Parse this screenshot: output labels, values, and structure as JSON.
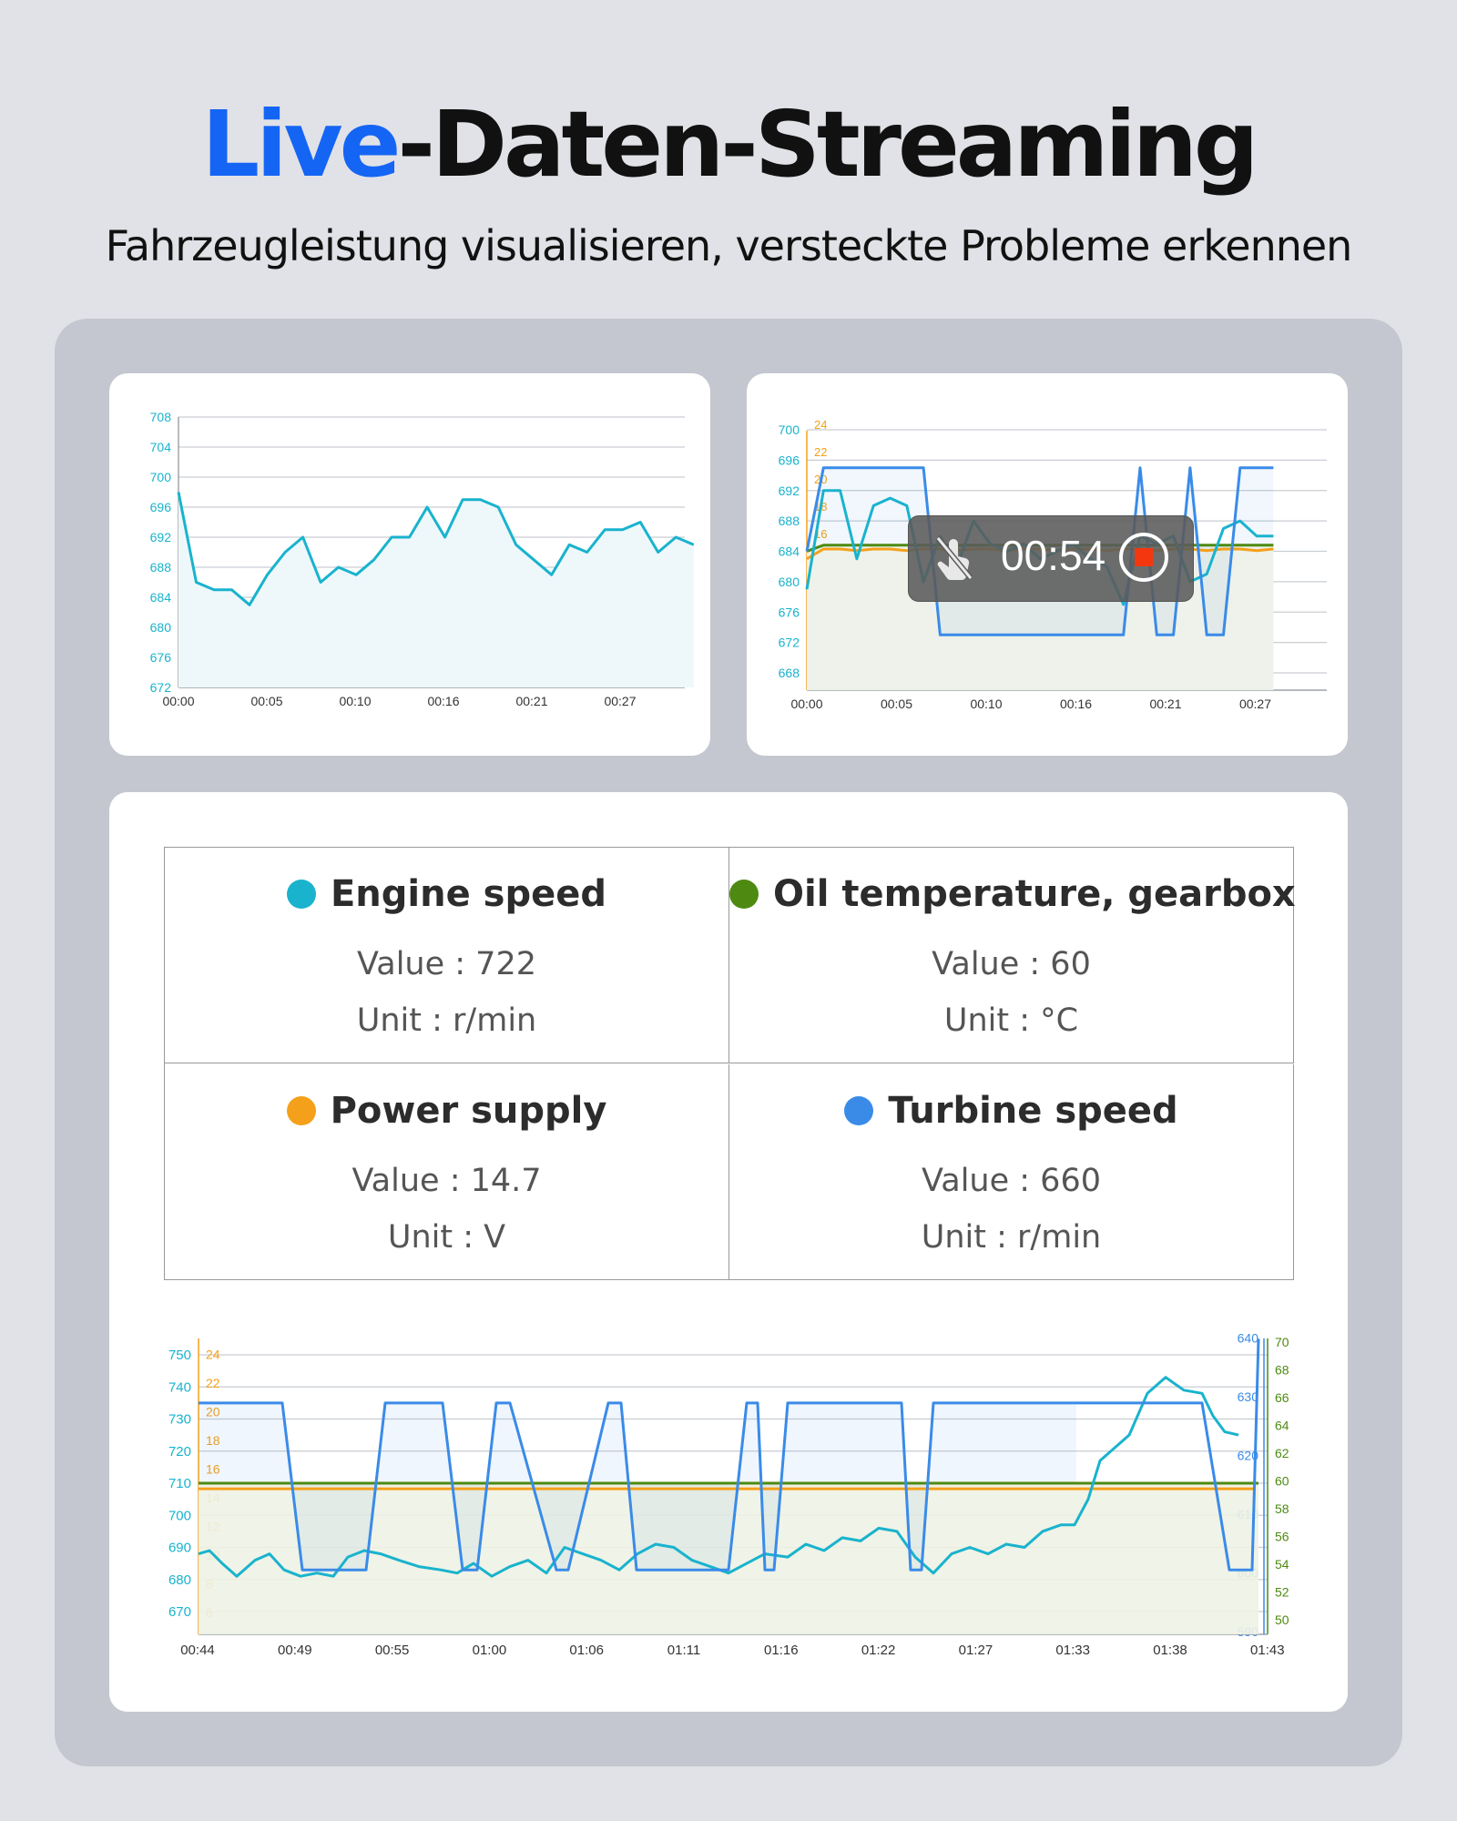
{
  "header": {
    "title_accent": "Live",
    "title_rest": "-Daten-Streaming",
    "subtitle": "Fahrzeugleistung visualisieren, versteckte Probleme erkennen"
  },
  "colors": {
    "engine": "#19b3cd",
    "oil": "#4e8a12",
    "power": "#f5a01a",
    "turbine": "#3a8be8",
    "accent": "#1565f5"
  },
  "recording": {
    "time": "00:54",
    "icons": [
      "touch-disabled-icon",
      "stop-record-icon"
    ]
  },
  "parameters": [
    {
      "name": "Engine speed",
      "value_text": "Value : 722",
      "unit_text": "Unit : r/min",
      "color": "#19b3cd"
    },
    {
      "name": "Oil temperature, gearbox",
      "value_text": "Value : 60",
      "unit_text": "Unit : °C",
      "color": "#4e8a12"
    },
    {
      "name": "Power supply",
      "value_text": "Value : 14.7",
      "unit_text": "Unit : V",
      "color": "#f5a01a"
    },
    {
      "name": "Turbine speed",
      "value_text": "Value : 660",
      "unit_text": "Unit : r/min",
      "color": "#3a8be8"
    }
  ],
  "chart_data": [
    {
      "type": "line",
      "y_ticks": [
        672,
        676,
        680,
        684,
        688,
        692,
        696,
        700,
        704,
        708
      ],
      "ylim": [
        672,
        708
      ],
      "x_ticks": [
        "00:00",
        "00:05",
        "00:10",
        "00:16",
        "00:21",
        "00:27"
      ],
      "series": [
        {
          "color": "#19b3cd",
          "x": [
            0,
            1,
            2,
            3,
            4,
            5,
            6,
            7,
            8,
            9,
            10,
            11,
            12,
            13,
            14,
            15,
            16,
            17,
            18,
            19,
            20,
            21,
            22,
            23,
            24,
            25,
            26,
            27,
            28,
            29
          ],
          "values": [
            698,
            686,
            685,
            685,
            683,
            687,
            690,
            692,
            686,
            688,
            687,
            689,
            692,
            692,
            696,
            692,
            697,
            697,
            696,
            691,
            689,
            687,
            691,
            690,
            693,
            693,
            694,
            690,
            692,
            691
          ]
        }
      ]
    },
    {
      "type": "line",
      "y_left_ticks": [
        668,
        672,
        676,
        680,
        684,
        688,
        692,
        696,
        700
      ],
      "y_left2_ticks": [
        6,
        8,
        10,
        12,
        14,
        16,
        18,
        20,
        22,
        24
      ],
      "x_ticks": [
        "00:00",
        "00:05",
        "00:10",
        "00:16",
        "00:21",
        "00:27"
      ],
      "series": [
        {
          "color": "#3a8be8",
          "values": [
            684,
            695,
            695,
            695,
            695,
            695,
            695,
            695,
            673,
            673,
            673,
            673,
            673,
            673,
            673,
            673,
            673,
            673,
            673,
            673,
            695,
            673,
            673,
            695,
            673,
            673,
            695,
            695,
            695
          ]
        },
        {
          "color": "#19b3cd",
          "values": [
            679,
            692,
            692,
            683,
            690,
            691,
            690,
            680,
            686,
            682,
            688,
            685,
            684,
            685,
            683,
            684,
            685,
            683,
            682,
            677,
            686,
            685,
            686,
            680,
            681,
            687,
            688,
            686,
            686
          ]
        },
        {
          "color": "#4e8a12",
          "values": [
            684,
            684.8,
            684.8,
            684.8,
            684.8,
            684.8,
            684.8,
            684.8,
            684.8,
            684.8,
            684.8,
            684.8,
            684.8,
            684.8,
            684.8,
            684.8,
            684.8,
            684.8,
            684.8,
            684.8,
            684.8,
            684.8,
            684.8,
            684.8,
            684.8,
            684.8,
            684.8,
            684.8,
            684.8
          ]
        },
        {
          "color": "#f5a01a",
          "values": [
            683,
            684.3,
            684.3,
            684.1,
            684.3,
            684.3,
            684.1,
            684.3,
            684.3,
            684.1,
            684.3,
            684.3,
            684.1,
            684.3,
            684.3,
            684.1,
            684.3,
            684.3,
            684.1,
            684.3,
            684.3,
            684.1,
            684.3,
            684.3,
            684.1,
            684.3,
            684.3,
            684.1,
            684.3
          ]
        }
      ]
    },
    {
      "type": "line",
      "y_left_ticks": [
        670,
        680,
        690,
        700,
        710,
        720,
        730,
        740,
        750
      ],
      "y_left2_ticks": [
        6,
        8,
        10,
        12,
        14,
        16,
        18,
        20,
        22,
        24
      ],
      "y_right_ticks": [
        590,
        600,
        610,
        620,
        630,
        640
      ],
      "y_right2_ticks": [
        50,
        52,
        54,
        56,
        58,
        60,
        62,
        64,
        66,
        68,
        70
      ],
      "x_ticks": [
        "00:44",
        "00:49",
        "00:55",
        "01:00",
        "01:06",
        "01:11",
        "01:16",
        "01:22",
        "01:27",
        "01:33",
        "01:38",
        "01:43"
      ],
      "series": [
        {
          "name": "Engine speed",
          "color": "#19b3cd"
        },
        {
          "name": "Oil temperature, gearbox",
          "color": "#4e8a12"
        },
        {
          "name": "Power supply",
          "color": "#f5a01a"
        },
        {
          "name": "Turbine speed",
          "color": "#3a8be8"
        }
      ]
    }
  ]
}
